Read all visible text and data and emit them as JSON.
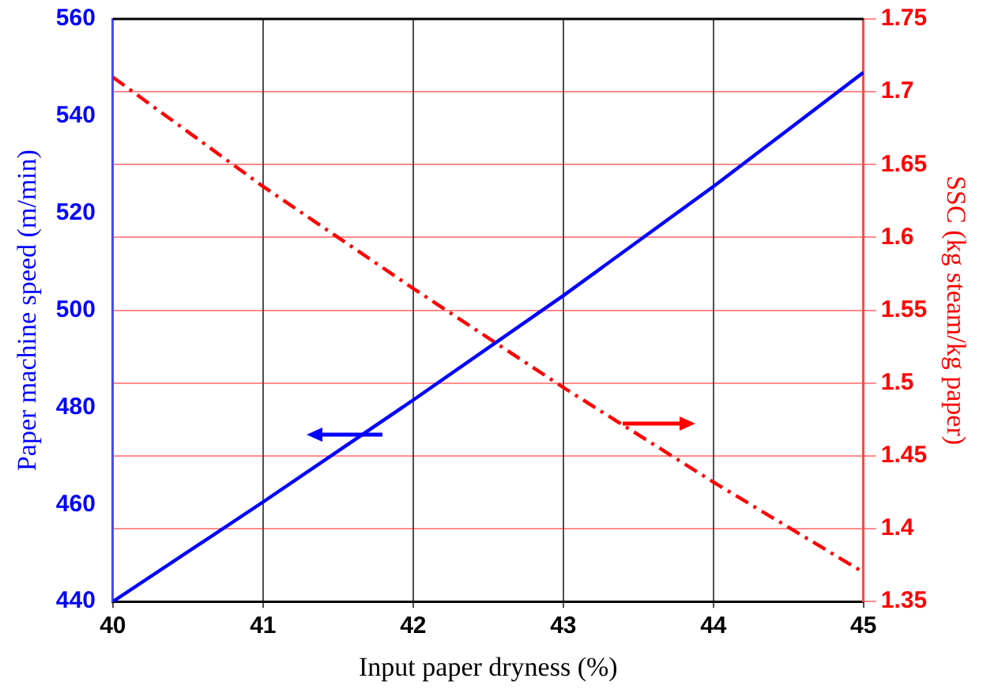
{
  "chart_data": {
    "type": "line",
    "xlabel": "Input paper dryness (%)",
    "ylabel": "Paper machine speed (m/min)",
    "y2label": "SSC (kg steam/kg paper)",
    "x": [
      40,
      41,
      42,
      43,
      44,
      45
    ],
    "xlim": [
      40,
      45
    ],
    "xticks": [
      40,
      41,
      42,
      43,
      44,
      45
    ],
    "ylim": [
      440,
      560
    ],
    "yticks": [
      440,
      460,
      480,
      500,
      520,
      540,
      560
    ],
    "y2lim": [
      1.35,
      1.75
    ],
    "y2ticks": [
      1.35,
      1.4,
      1.45,
      1.5,
      1.55,
      1.6,
      1.65,
      1.7,
      1.75
    ],
    "grid": true,
    "legend": false,
    "marker": "none",
    "series": [
      {
        "color": "#0000ff",
        "values": [
          440,
          460.5,
          481.5,
          503,
          525.5,
          549
        ],
        "line_style": "solid"
      },
      {
        "color": "#ff0000",
        "values": [
          1.71,
          1.635,
          1.565,
          1.497,
          1.432,
          1.37
        ],
        "axis": "y2",
        "line_style": "dashdot"
      }
    ]
  }
}
